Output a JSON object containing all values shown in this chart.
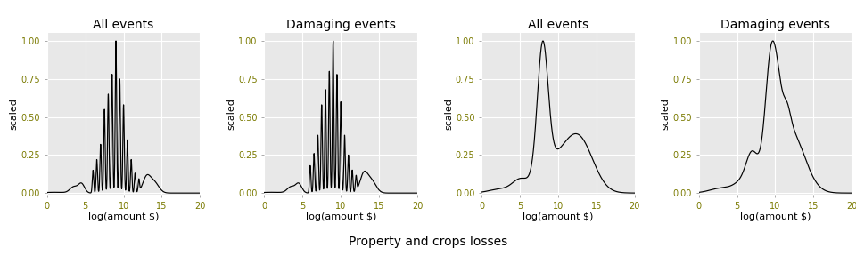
{
  "titles": [
    "All events",
    "Damaging events",
    "All events",
    "Damaging events"
  ],
  "xlabel": "log(amount $)",
  "ylabel": "scaled",
  "fig_title": "Property and crops losses",
  "xlim": [
    0,
    20
  ],
  "ylim": [
    -0.01,
    1.05
  ],
  "yticks": [
    0.0,
    0.25,
    0.5,
    0.75,
    1.0
  ],
  "xticks": [
    0,
    5,
    10,
    15,
    20
  ],
  "bg_color": "#E8E8E8",
  "line_color": "#000000",
  "grid_color": "#FFFFFF",
  "tick_label_color": "#7a7a00",
  "title_fontsize": 10,
  "label_fontsize": 8,
  "tick_fontsize": 7
}
